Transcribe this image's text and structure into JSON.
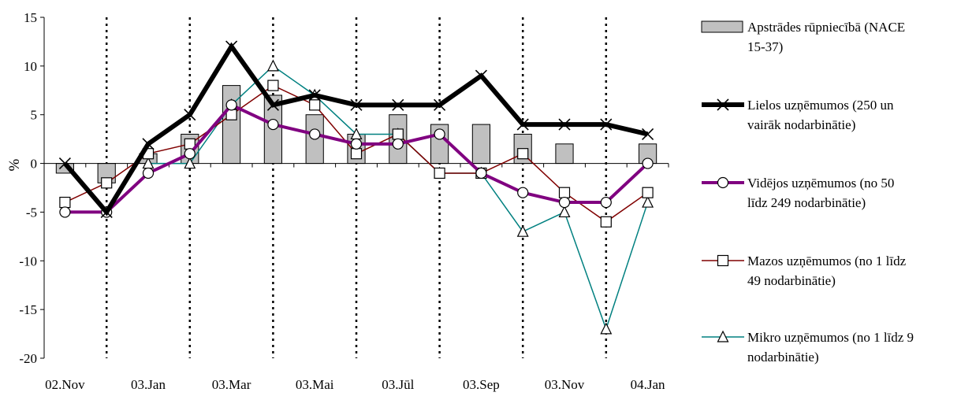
{
  "chart_data": {
    "type": "bar",
    "ylabel": "%",
    "ylim": [
      -20,
      15
    ],
    "yticks": [
      15,
      10,
      5,
      0,
      -5,
      -10,
      -15,
      -20
    ],
    "x_tick_labels": [
      "02.Nov",
      "03.Jan",
      "03.Mar",
      "03.Mai",
      "03.Jūl",
      "03.Sep",
      "03.Nov",
      "04.Jan"
    ],
    "num_months": 15,
    "grid": "vertical dotted separators between month groups",
    "legend_position": "right",
    "series": [
      {
        "name": "Apstrādes rūpniecībā (NACE 15-37)",
        "legend_lines": [
          "Apstrādes rūpniecībā (NACE",
          "15-37)"
        ],
        "type": "bar",
        "color": "#c0c0c0",
        "values": [
          -1,
          -2,
          1,
          3,
          8,
          7,
          5,
          3,
          5,
          4,
          4,
          3,
          2,
          0,
          2
        ]
      },
      {
        "name": "Lielos uzņēmumos (250 un vairāk nodarbinātie)",
        "legend_lines": [
          "Lielos uzņēmumos (250 un",
          "vairāk nodarbinātie)"
        ],
        "type": "line",
        "color": "#000000",
        "marker": "x",
        "values": [
          0,
          -5,
          2,
          5,
          12,
          6,
          7,
          6,
          6,
          6,
          9,
          4,
          4,
          4,
          3
        ]
      },
      {
        "name": "Vidējos uzņēmumos (no 50 līdz 249 nodarbinātie)",
        "legend_lines": [
          "Vidējos uzņēmumos (no 50",
          "līdz 249 nodarbinātie)"
        ],
        "type": "line",
        "color": "#800080",
        "marker": "circle",
        "values": [
          -5,
          -5,
          -1,
          1,
          6,
          4,
          3,
          2,
          2,
          3,
          -1,
          -3,
          -4,
          -4,
          0
        ]
      },
      {
        "name": "Mazos uzņēmumos (no 1 līdz 49 nodarbinātie)",
        "legend_lines": [
          "Mazos uzņēmumos (no 1 līdz",
          "49 nodarbinātie)"
        ],
        "type": "line",
        "color": "#800000",
        "marker": "square",
        "values": [
          -4,
          -2,
          1,
          2,
          5,
          8,
          6,
          1,
          3,
          -1,
          -1,
          1,
          -3,
          -6,
          -3
        ]
      },
      {
        "name": "Mikro uzņēmumos (no 1 līdz 9 nodarbinātie)",
        "legend_lines": [
          "Mikro uzņēmumos (no 1 līdz 9",
          "nodarbinātie)"
        ],
        "type": "line",
        "color": "#008080",
        "marker": "triangle",
        "values": [
          null,
          null,
          0,
          0,
          6,
          10,
          7,
          3,
          3,
          -1,
          -1,
          -7,
          -5,
          -17,
          -4
        ]
      }
    ]
  }
}
